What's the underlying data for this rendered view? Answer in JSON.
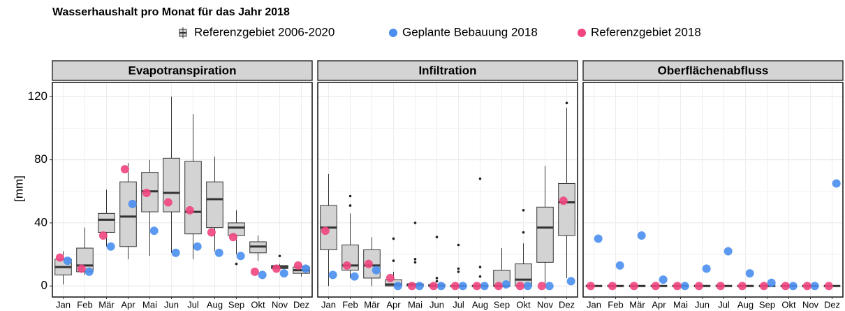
{
  "chart_data": {
    "type": "box",
    "title": "Wasserhaushalt pro Monat für das Jahr 2018",
    "ylabel": "[mm]",
    "categories": [
      "Jan",
      "Feb",
      "Mär",
      "Apr",
      "Mai",
      "Jun",
      "Jul",
      "Aug",
      "Sep",
      "Okt",
      "Nov",
      "Dez"
    ],
    "ylim": [
      -7,
      129
    ],
    "yticks": [
      0,
      40,
      80,
      120
    ],
    "grid": true,
    "facet_titles": [
      "Evapotranspiration",
      "Infiltration",
      "Oberflächenabfluss"
    ],
    "boxes": {
      "name": "Referenzgebiet 2006-2020",
      "color": "#d3d3d3",
      "facets": [
        {
          "min": [
            1,
            7,
            25,
            17,
            19,
            21,
            17,
            22,
            20,
            16,
            10,
            6
          ],
          "q1": [
            7,
            9,
            34,
            25,
            47,
            47,
            33,
            37,
            32,
            21,
            11,
            8
          ],
          "median": [
            12,
            13,
            42,
            44,
            60,
            59,
            47,
            55,
            37,
            25,
            12,
            10
          ],
          "q3": [
            17,
            24,
            46,
            66,
            72,
            81,
            79,
            66,
            40,
            28,
            13,
            12
          ],
          "max": [
            22,
            37,
            61,
            78,
            80,
            120,
            109,
            82,
            48,
            32,
            14,
            14
          ],
          "outliers": [
            [],
            [],
            [],
            [],
            [],
            [],
            [],
            [],
            [
              14
            ],
            [],
            [
              19
            ],
            []
          ]
        },
        {
          "min": [
            0,
            5,
            0,
            0,
            0,
            0,
            0,
            0,
            0,
            0,
            0,
            5
          ],
          "q1": [
            23,
            10,
            5,
            0,
            0,
            0,
            0,
            0,
            0,
            0,
            15,
            32
          ],
          "median": [
            37,
            13,
            13,
            1,
            1,
            0,
            0,
            0,
            0,
            4,
            37,
            53
          ],
          "q3": [
            51,
            26,
            23,
            4,
            1,
            1,
            0,
            0,
            10,
            14,
            50,
            65
          ],
          "max": [
            71,
            46,
            31,
            9,
            1,
            1,
            0,
            0,
            24,
            27,
            76,
            113
          ],
          "outliers": [
            [],
            [
              51,
              57
            ],
            [],
            [
              16,
              30
            ],
            [
              15,
              17,
              40
            ],
            [
              3,
              5,
              31
            ],
            [
              9,
              11,
              26
            ],
            [
              6,
              12,
              68
            ],
            [],
            [
              34,
              48
            ],
            [],
            [
              116
            ]
          ]
        },
        {
          "min": [
            0,
            0,
            0,
            0,
            0,
            0,
            0,
            0,
            0,
            0,
            0,
            0
          ],
          "q1": [
            0,
            0,
            0,
            0,
            0,
            0,
            0,
            0,
            0,
            0,
            0,
            0
          ],
          "median": [
            0,
            0,
            0,
            0,
            0,
            0,
            0,
            0,
            0,
            0,
            0,
            0
          ],
          "q3": [
            0,
            0,
            0,
            0,
            0,
            0,
            0,
            0,
            0,
            0,
            0,
            0
          ],
          "max": [
            0,
            0,
            0,
            0,
            0,
            0,
            0,
            0,
            0,
            0,
            0,
            0
          ],
          "outliers": [
            [],
            [],
            [],
            [],
            [],
            [],
            [],
            [],
            [],
            [],
            [],
            []
          ]
        }
      ]
    },
    "series": [
      {
        "name": "Geplante Bebauung 2018",
        "color": "#4a8ff0",
        "values": [
          [
            16,
            9,
            25,
            52,
            35,
            21,
            25,
            21,
            19,
            7,
            8,
            11
          ],
          [
            7,
            6,
            10,
            0,
            0,
            0,
            0,
            0,
            1,
            0,
            0,
            3
          ],
          [
            30,
            13,
            32,
            4,
            0,
            11,
            22,
            8,
            2,
            0,
            0,
            65
          ]
        ]
      },
      {
        "name": "Referenzgebiet 2018",
        "color": "#f0457f",
        "values": [
          [
            18,
            11,
            32,
            74,
            59,
            53,
            48,
            34,
            31,
            9,
            11,
            13
          ],
          [
            35,
            13,
            14,
            5,
            0,
            0,
            0,
            0,
            0,
            0,
            0,
            54
          ],
          [
            0,
            0,
            0,
            0,
            0,
            0,
            0,
            0,
            0,
            0,
            0,
            0
          ]
        ]
      }
    ]
  }
}
